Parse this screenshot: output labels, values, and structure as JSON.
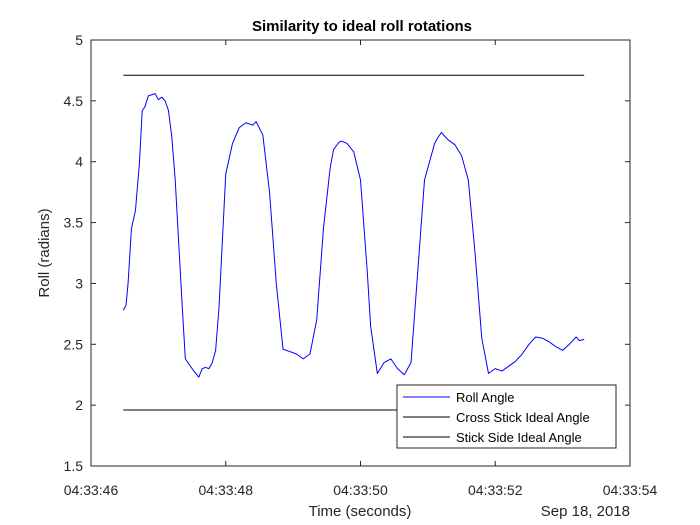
{
  "chart_data": {
    "type": "line",
    "title": "Similarity to ideal roll rotations",
    "xlabel": "Time (seconds)",
    "ylabel": "Roll (radians)",
    "date_label": "Sep 18, 2018",
    "x_unit": "seconds after 04:33:46",
    "xlim": [
      0,
      8
    ],
    "ylim": [
      1.5,
      5
    ],
    "x_ticks": [
      0,
      2,
      4,
      6,
      8
    ],
    "x_tick_labels": [
      "04:33:46",
      "04:33:48",
      "04:33:50",
      "04:33:52",
      "04:33:54"
    ],
    "y_ticks": [
      1.5,
      2,
      2.5,
      3,
      3.5,
      4,
      4.5,
      5
    ],
    "y_tick_labels": [
      "1.5",
      "2",
      "2.5",
      "3",
      "3.5",
      "4",
      "4.5",
      "5"
    ],
    "grid": false,
    "legend_position": "bottom-right",
    "colors": {
      "roll": "#0000ff",
      "ideal": "#000000"
    },
    "series": [
      {
        "name": "Roll Angle",
        "color": "#0000ff",
        "x": [
          0.48,
          0.52,
          0.55,
          0.6,
          0.66,
          0.72,
          0.76,
          0.8,
          0.85,
          0.9,
          0.95,
          1.0,
          1.05,
          1.1,
          1.15,
          1.2,
          1.25,
          1.3,
          1.35,
          1.4,
          1.5,
          1.6,
          1.65,
          1.7,
          1.75,
          1.8,
          1.85,
          1.9,
          1.95,
          2.0,
          2.1,
          2.2,
          2.3,
          2.4,
          2.45,
          2.55,
          2.65,
          2.75,
          2.85,
          2.95,
          3.05,
          3.15,
          3.25,
          3.35,
          3.45,
          3.55,
          3.6,
          3.68,
          3.72,
          3.8,
          3.9,
          4.0,
          4.1,
          4.15,
          4.25,
          4.35,
          4.45,
          4.55,
          4.65,
          4.75,
          4.85,
          4.95,
          5.05,
          5.1,
          5.15,
          5.2,
          5.3,
          5.4,
          5.5,
          5.6,
          5.7,
          5.8,
          5.9,
          6.0,
          6.1,
          6.2,
          6.3,
          6.4,
          6.5,
          6.6,
          6.7,
          6.8,
          6.85,
          6.9,
          7.0,
          7.1,
          7.2,
          7.25,
          7.32
        ],
        "values": [
          2.78,
          2.82,
          3.0,
          3.45,
          3.6,
          4.0,
          4.42,
          4.45,
          4.54,
          4.55,
          4.56,
          4.51,
          4.53,
          4.5,
          4.42,
          4.2,
          3.85,
          3.35,
          2.85,
          2.38,
          2.3,
          2.23,
          2.3,
          2.31,
          2.3,
          2.35,
          2.45,
          2.8,
          3.35,
          3.9,
          4.15,
          4.28,
          4.32,
          4.3,
          4.33,
          4.22,
          3.75,
          3.0,
          2.46,
          2.44,
          2.42,
          2.38,
          2.42,
          2.7,
          3.45,
          3.95,
          4.1,
          4.16,
          4.17,
          4.15,
          4.08,
          3.85,
          3.1,
          2.65,
          2.26,
          2.35,
          2.38,
          2.3,
          2.25,
          2.35,
          3.1,
          3.85,
          4.05,
          4.15,
          4.2,
          4.24,
          4.18,
          4.14,
          4.05,
          3.85,
          3.25,
          2.55,
          2.26,
          2.3,
          2.28,
          2.32,
          2.36,
          2.42,
          2.5,
          2.56,
          2.55,
          2.52,
          2.5,
          2.48,
          2.45,
          2.5,
          2.56,
          2.53,
          2.54
        ]
      },
      {
        "name": "Cross Stick Ideal Angle",
        "color": "#000000",
        "x": [
          0.48,
          7.32
        ],
        "values": [
          4.71,
          4.71
        ]
      },
      {
        "name": "Stick Side Ideal Angle",
        "color": "#000000",
        "x": [
          0.48,
          7.32
        ],
        "values": [
          1.96,
          1.96
        ]
      }
    ]
  }
}
